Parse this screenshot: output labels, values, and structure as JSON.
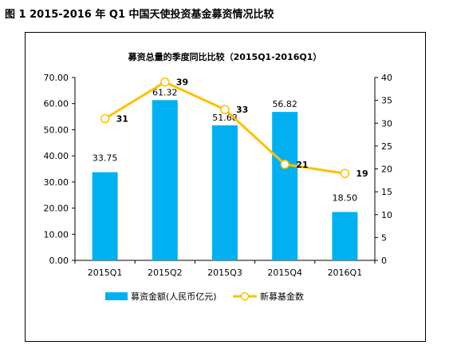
{
  "figure_title": "图 1 2015-2016 年 Q1 中国天使投资基金募资情况比较",
  "chart_data": {
    "type": "bar",
    "title": "募资总量的季度同比比较（2015Q1-2016Q1）",
    "categories": [
      "2015Q1",
      "2015Q2",
      "2015Q3",
      "2015Q4",
      "2016Q1"
    ],
    "series": [
      {
        "name": "募资金额(人民币亿元)",
        "type": "bar",
        "axis": "left",
        "color": "#00B0F0",
        "values": [
          33.75,
          61.32,
          51.68,
          56.82,
          18.5
        ],
        "labels": [
          "33.75",
          "61.32",
          "51.68",
          "56.82",
          "18.50"
        ]
      },
      {
        "name": "新募基金数",
        "type": "line",
        "axis": "right",
        "color": "#FFC000",
        "values": [
          31,
          39,
          33,
          21,
          19
        ],
        "labels": [
          "31",
          "39",
          "33",
          "21",
          "19"
        ]
      }
    ],
    "y_left": {
      "min": 0,
      "max": 70,
      "ticks": [
        "0.00",
        "10.00",
        "20.00",
        "30.00",
        "40.00",
        "50.00",
        "60.00",
        "70.00"
      ]
    },
    "y_right": {
      "min": 0,
      "max": 40,
      "ticks": [
        "0",
        "5",
        "10",
        "15",
        "20",
        "25",
        "30",
        "35",
        "40"
      ]
    },
    "grid": false,
    "legend_position": "bottom"
  }
}
